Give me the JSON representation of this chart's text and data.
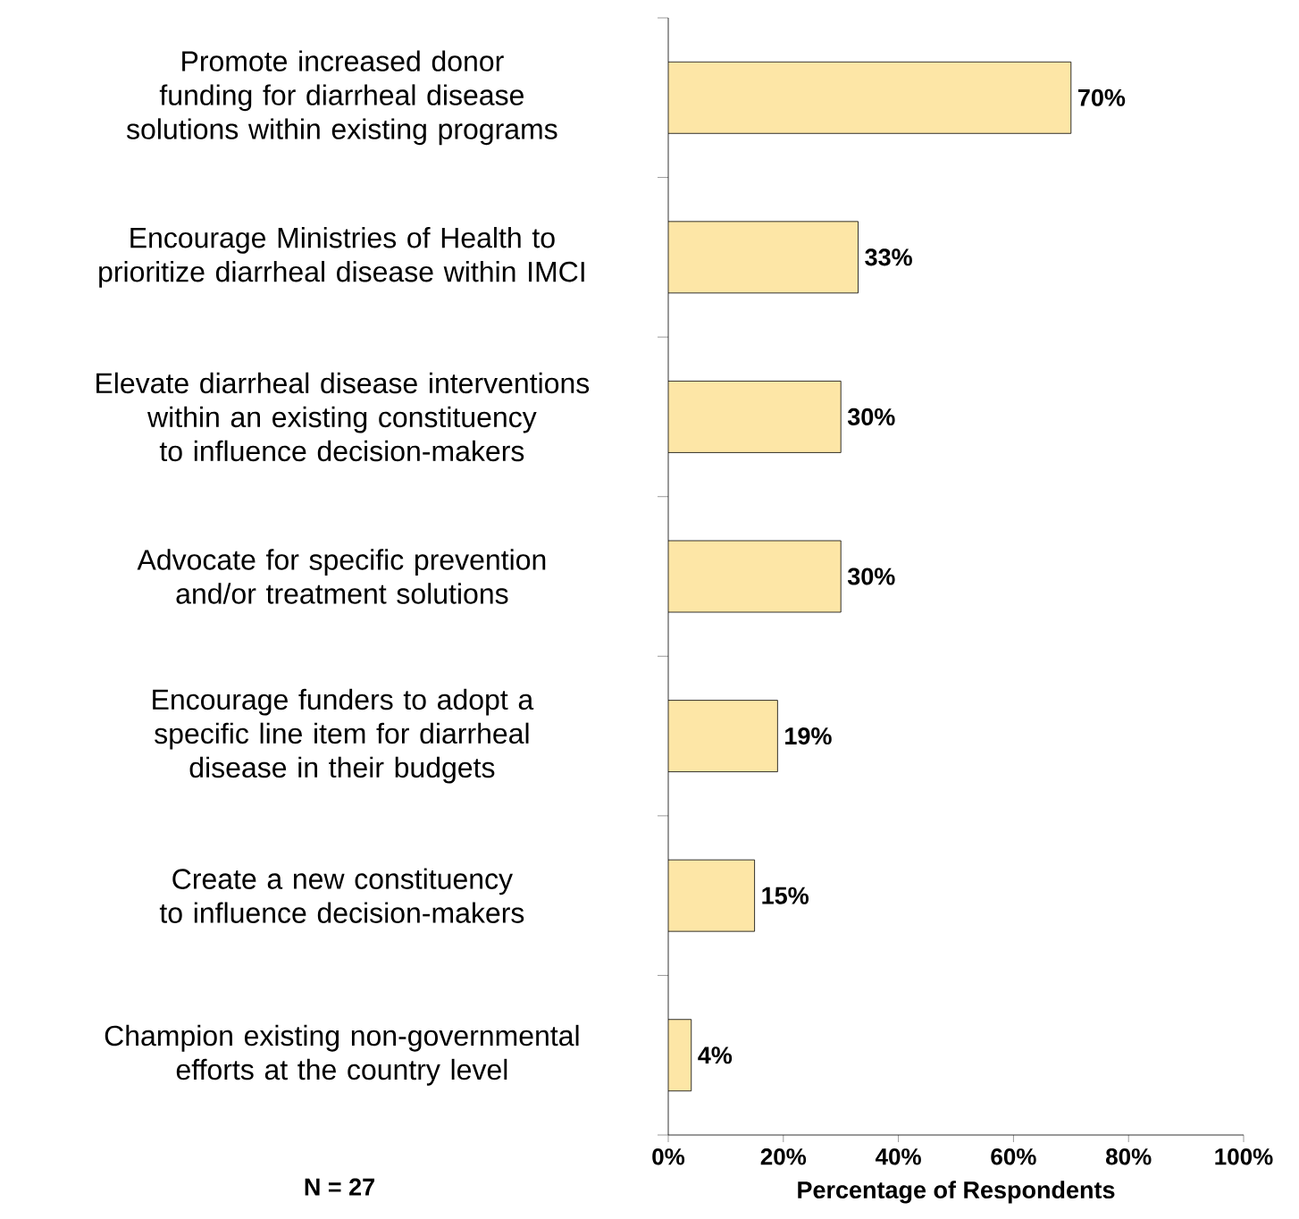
{
  "chart_data": {
    "type": "bar",
    "orientation": "horizontal",
    "categories": [
      "Promote increased donor funding for diarrheal disease solutions within existing programs",
      "Encourage Ministries of Health to prioritize diarrheal disease within IMCI",
      "Elevate diarrheal disease interventions within an existing constituency to influence decision-makers",
      "Advocate for specific prevention and/or treatment solutions",
      "Encourage funders to adopt a specific line item for diarrheal disease in their budgets",
      "Create a new constituency to influence decision-makers",
      "Champion existing non-governmental efforts at the country level"
    ],
    "values": [
      70,
      33,
      30,
      30,
      19,
      15,
      4
    ],
    "value_labels": [
      "70%",
      "33%",
      "30%",
      "30%",
      "19%",
      "15%",
      "4%"
    ],
    "color": "#fde6a6",
    "xlabel": "Percentage of Respondents",
    "xlim": [
      0,
      100
    ],
    "xticks": [
      {
        "value": 0,
        "label": "0%"
      },
      {
        "value": 20,
        "label": "20%"
      },
      {
        "value": 40,
        "label": "40%"
      },
      {
        "value": 60,
        "label": "60%"
      },
      {
        "value": 80,
        "label": "80%"
      },
      {
        "value": 100,
        "label": "100%"
      }
    ],
    "annotations": [
      "N = 27"
    ],
    "grid": false
  }
}
